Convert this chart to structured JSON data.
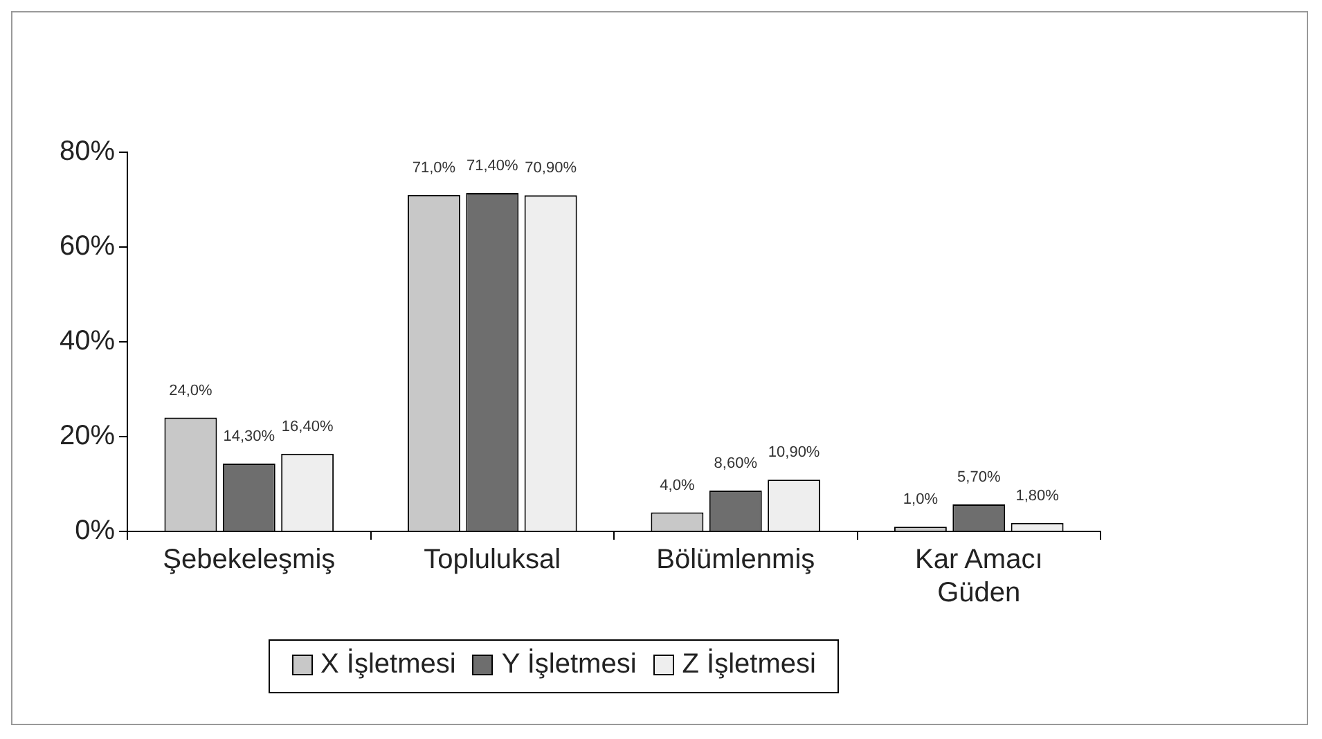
{
  "chart_data": {
    "type": "bar",
    "categories": [
      "Şebekeleşmiş",
      "Topluluksal",
      "Bölümlenmiş",
      "Kar Amacı Güden"
    ],
    "series": [
      {
        "name": "X İşletmesi",
        "color": "#c8c8c8",
        "values": [
          24,
          71,
          4,
          1
        ],
        "value_labels": [
          "24,0%",
          "71,0%",
          "4,0%",
          "1,0%"
        ]
      },
      {
        "name": "Y İşletmesi",
        "color": "#6e6e6e",
        "values": [
          14.3,
          71.4,
          8.6,
          5.7
        ],
        "value_labels": [
          "14,30%",
          "71,40%",
          "8,60%",
          "5,70%"
        ]
      },
      {
        "name": "Z İşletmesi",
        "color": "#eeeeee",
        "values": [
          16.4,
          70.9,
          10.9,
          1.8
        ],
        "value_labels": [
          "16,40%",
          "70,90%",
          "10,90%",
          "1,80%"
        ]
      }
    ],
    "ylim": [
      0,
      80
    ],
    "yticks": [
      {
        "value": 0,
        "label": "0%"
      },
      {
        "value": 20,
        "label": "20%"
      },
      {
        "value": 40,
        "label": "40%"
      },
      {
        "value": 60,
        "label": "60%"
      },
      {
        "value": 80,
        "label": "80%"
      }
    ],
    "grid": false,
    "legend": "bottom"
  }
}
